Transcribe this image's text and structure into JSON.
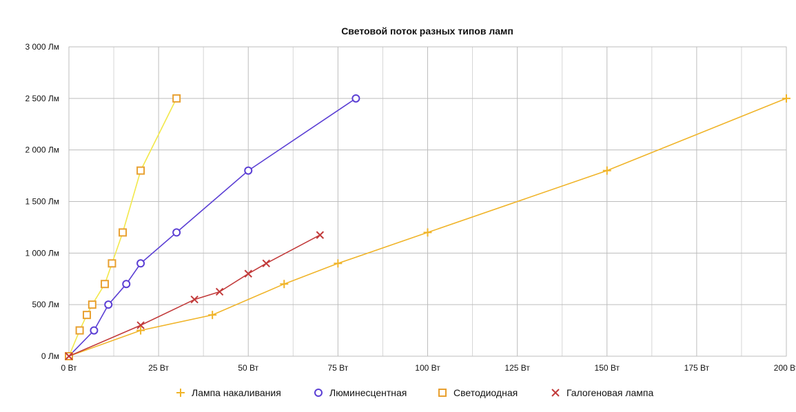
{
  "chart_data": {
    "type": "line",
    "title": "Световой поток разных типов ламп",
    "xlabel": "",
    "ylabel": "",
    "xlim": [
      0,
      200
    ],
    "ylim": [
      0,
      3000
    ],
    "x_ticks": [
      0,
      25,
      50,
      75,
      100,
      125,
      150,
      175,
      200
    ],
    "x_tick_labels": [
      "0 Вт",
      "25 Вт",
      "50 Вт",
      "75 Вт",
      "100 Вт",
      "125 Вт",
      "150 Вт",
      "175 Вт",
      "200 Вт"
    ],
    "y_ticks": [
      0,
      500,
      1000,
      1500,
      2000,
      2500,
      3000
    ],
    "y_tick_labels": [
      "0 Лм",
      "500 Лм",
      "1 000 Лм",
      "1 500 Лм",
      "2 000 Лм",
      "2 500 Лм",
      "3 000 Лм"
    ],
    "grid": true,
    "legend_position": "bottom",
    "series": [
      {
        "name": "Лампа накаливания",
        "color": "#f0b429",
        "marker": "plus",
        "points": [
          [
            0,
            0
          ],
          [
            20,
            250
          ],
          [
            40,
            400
          ],
          [
            60,
            700
          ],
          [
            75,
            900
          ],
          [
            100,
            1200
          ],
          [
            150,
            1800
          ],
          [
            200,
            2500
          ]
        ]
      },
      {
        "name": "Люминесцентная",
        "color": "#5b3fd4",
        "marker": "circle",
        "points": [
          [
            0,
            0
          ],
          [
            7,
            250
          ],
          [
            11,
            500
          ],
          [
            16,
            700
          ],
          [
            20,
            900
          ],
          [
            30,
            1200
          ],
          [
            50,
            1800
          ],
          [
            80,
            2500
          ]
        ]
      },
      {
        "name": "Светодиодная",
        "color": "#e8a030",
        "line_color": "#f2e84a",
        "marker": "square",
        "points": [
          [
            0,
            0
          ],
          [
            3,
            250
          ],
          [
            5,
            400
          ],
          [
            6.5,
            500
          ],
          [
            10,
            700
          ],
          [
            12,
            900
          ],
          [
            15,
            1200
          ],
          [
            20,
            1800
          ],
          [
            30,
            2500
          ]
        ]
      },
      {
        "name": "Галогеновая лампа",
        "color": "#c23b3b",
        "marker": "cross",
        "points": [
          [
            0,
            0
          ],
          [
            20,
            300
          ],
          [
            35,
            550
          ],
          [
            42,
            625
          ],
          [
            50,
            800
          ],
          [
            55,
            900
          ],
          [
            70,
            1175
          ]
        ]
      }
    ]
  }
}
